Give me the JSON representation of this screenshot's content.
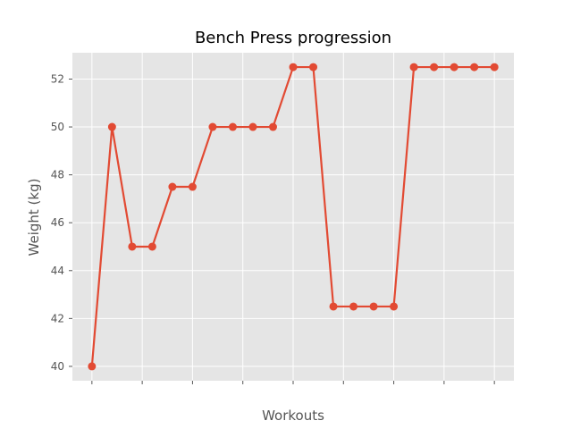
{
  "chart_data": {
    "type": "line",
    "title": "Bench Press progression",
    "xlabel": "Workouts",
    "ylabel": "Weight (kg)",
    "x": [
      0,
      1,
      2,
      3,
      4,
      5,
      6,
      7,
      8,
      9,
      10,
      11,
      12,
      13,
      14,
      15,
      16,
      17,
      18,
      19,
      20
    ],
    "series": [
      {
        "values": [
          40,
          50,
          45,
          45,
          47.5,
          47.5,
          50,
          50,
          50,
          50,
          52.5,
          52.5,
          42.5,
          42.5,
          42.5,
          42.5,
          52.5,
          52.5,
          52.5,
          52.5,
          52.5
        ],
        "color": "#E24A33"
      }
    ],
    "ylim": [
      39.4,
      53.1
    ],
    "xlim": [
      -0.97,
      20.97
    ],
    "yticks": [
      40,
      42,
      44,
      46,
      48,
      50,
      52
    ],
    "ytick_labels": [
      "40",
      "42",
      "44",
      "46",
      "48",
      "50",
      "52"
    ],
    "xticks": [
      0,
      2.5,
      5,
      7.5,
      10,
      12.5,
      15,
      17.5,
      20
    ],
    "xtick_labels_shown": false,
    "grid": true,
    "style": "ggplot",
    "background_color": "#E5E5E5",
    "grid_color": "#FFFFFF"
  }
}
